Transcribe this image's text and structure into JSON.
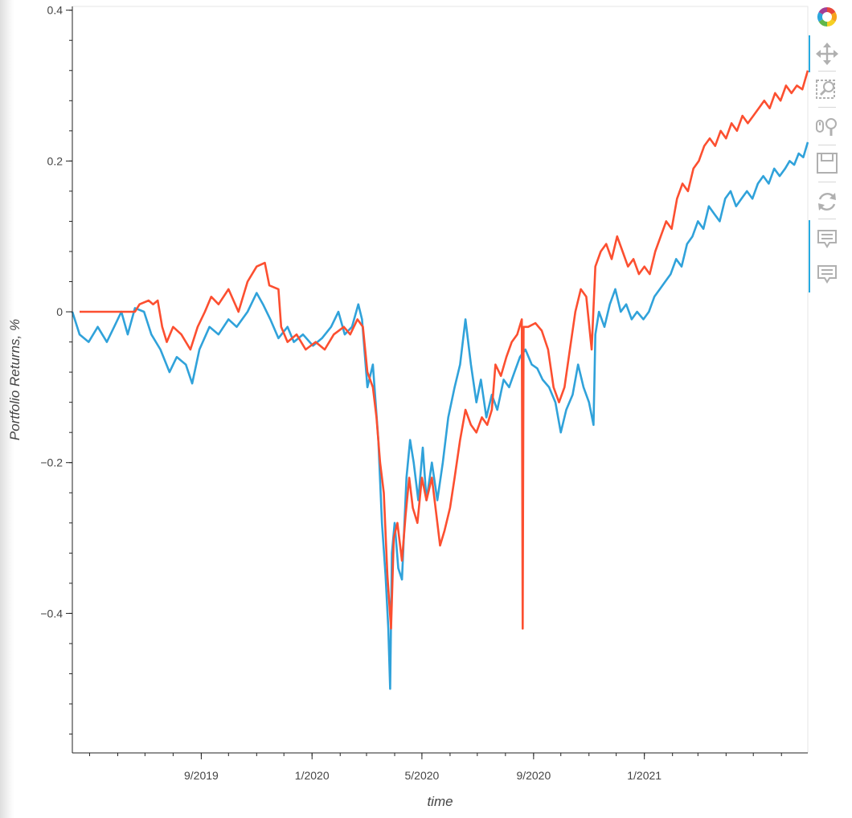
{
  "chart_data": {
    "type": "line",
    "title": "",
    "xlabel": "time",
    "ylabel": "Portfolio Returns, %",
    "xlim": [
      "2019-04-12",
      "2021-06-30"
    ],
    "ylim": [
      -0.585,
      0.405
    ],
    "x_ticks": [
      "2019-09-01",
      "2020-01-01",
      "2020-05-01",
      "2020-09-01",
      "2021-01-01"
    ],
    "x_tick_labels": [
      "9/2019",
      "1/2020",
      "5/2020",
      "9/2020",
      "1/2021"
    ],
    "y_ticks": [
      0.4,
      0.2,
      0,
      -0.2,
      -0.4
    ],
    "y_tick_labels": [
      "0.4",
      "0.2",
      "0",
      "−0.2",
      "−0.4"
    ],
    "y_minor_step": 0.04,
    "grid": false,
    "legend": "none",
    "series": [
      {
        "color": "#30a2da",
        "points": [
          [
            "2019-04-12",
            0.0
          ],
          [
            "2019-04-20",
            -0.03
          ],
          [
            "2019-04-30",
            -0.04
          ],
          [
            "2019-05-10",
            -0.02
          ],
          [
            "2019-05-20",
            -0.04
          ],
          [
            "2019-05-28",
            -0.02
          ],
          [
            "2019-06-05",
            0.0
          ],
          [
            "2019-06-12",
            -0.03
          ],
          [
            "2019-06-20",
            0.005
          ],
          [
            "2019-06-30",
            0.0
          ],
          [
            "2019-07-08",
            -0.03
          ],
          [
            "2019-07-18",
            -0.05
          ],
          [
            "2019-07-28",
            -0.08
          ],
          [
            "2019-08-05",
            -0.06
          ],
          [
            "2019-08-15",
            -0.07
          ],
          [
            "2019-08-22",
            -0.095
          ],
          [
            "2019-08-30",
            -0.05
          ],
          [
            "2019-09-10",
            -0.02
          ],
          [
            "2019-09-20",
            -0.03
          ],
          [
            "2019-10-01",
            -0.01
          ],
          [
            "2019-10-10",
            -0.02
          ],
          [
            "2019-10-22",
            0.0
          ],
          [
            "2019-11-01",
            0.025
          ],
          [
            "2019-11-08",
            0.01
          ],
          [
            "2019-11-16",
            -0.01
          ],
          [
            "2019-11-25",
            -0.035
          ],
          [
            "2019-12-05",
            -0.02
          ],
          [
            "2019-12-12",
            -0.04
          ],
          [
            "2019-12-22",
            -0.03
          ],
          [
            "2020-01-02",
            -0.045
          ],
          [
            "2020-01-12",
            -0.035
          ],
          [
            "2020-01-22",
            -0.02
          ],
          [
            "2020-01-30",
            0.0
          ],
          [
            "2020-02-06",
            -0.03
          ],
          [
            "2020-02-14",
            -0.02
          ],
          [
            "2020-02-21",
            0.01
          ],
          [
            "2020-02-25",
            -0.01
          ],
          [
            "2020-03-02",
            -0.1
          ],
          [
            "2020-03-08",
            -0.07
          ],
          [
            "2020-03-14",
            -0.17
          ],
          [
            "2020-03-18",
            -0.28
          ],
          [
            "2020-03-22",
            -0.35
          ],
          [
            "2020-03-25",
            -0.42
          ],
          [
            "2020-03-27",
            -0.5
          ],
          [
            "2020-03-29",
            -0.32
          ],
          [
            "2020-04-01",
            -0.28
          ],
          [
            "2020-04-05",
            -0.34
          ],
          [
            "2020-04-09",
            -0.355
          ],
          [
            "2020-04-14",
            -0.22
          ],
          [
            "2020-04-18",
            -0.17
          ],
          [
            "2020-04-22",
            -0.2
          ],
          [
            "2020-04-27",
            -0.25
          ],
          [
            "2020-05-02",
            -0.18
          ],
          [
            "2020-05-06",
            -0.25
          ],
          [
            "2020-05-12",
            -0.2
          ],
          [
            "2020-05-18",
            -0.25
          ],
          [
            "2020-05-24",
            -0.2
          ],
          [
            "2020-05-30",
            -0.14
          ],
          [
            "2020-06-06",
            -0.1
          ],
          [
            "2020-06-12",
            -0.07
          ],
          [
            "2020-06-18",
            -0.01
          ],
          [
            "2020-06-24",
            -0.07
          ],
          [
            "2020-06-30",
            -0.12
          ],
          [
            "2020-07-05",
            -0.09
          ],
          [
            "2020-07-11",
            -0.14
          ],
          [
            "2020-07-17",
            -0.11
          ],
          [
            "2020-07-23",
            -0.13
          ],
          [
            "2020-07-30",
            -0.09
          ],
          [
            "2020-08-05",
            -0.1
          ],
          [
            "2020-08-11",
            -0.08
          ],
          [
            "2020-08-17",
            -0.06
          ],
          [
            "2020-08-23",
            -0.05
          ],
          [
            "2020-08-30",
            -0.07
          ],
          [
            "2020-09-05",
            -0.075
          ],
          [
            "2020-09-11",
            -0.09
          ],
          [
            "2020-09-18",
            -0.1
          ],
          [
            "2020-09-25",
            -0.12
          ],
          [
            "2020-10-01",
            -0.16
          ],
          [
            "2020-10-07",
            -0.13
          ],
          [
            "2020-10-14",
            -0.11
          ],
          [
            "2020-10-20",
            -0.07
          ],
          [
            "2020-10-26",
            -0.1
          ],
          [
            "2020-11-01",
            -0.12
          ],
          [
            "2020-11-06",
            -0.15
          ],
          [
            "2020-11-08",
            -0.03
          ],
          [
            "2020-11-12",
            0.0
          ],
          [
            "2020-11-18",
            -0.02
          ],
          [
            "2020-11-24",
            0.01
          ],
          [
            "2020-11-30",
            0.03
          ],
          [
            "2020-12-06",
            0.0
          ],
          [
            "2020-12-12",
            0.01
          ],
          [
            "2020-12-18",
            -0.01
          ],
          [
            "2020-12-24",
            0.0
          ],
          [
            "2020-12-31",
            -0.01
          ],
          [
            "2021-01-06",
            0.0
          ],
          [
            "2021-01-12",
            0.02
          ],
          [
            "2021-01-18",
            0.03
          ],
          [
            "2021-01-24",
            0.04
          ],
          [
            "2021-01-30",
            0.05
          ],
          [
            "2021-02-05",
            0.07
          ],
          [
            "2021-02-11",
            0.06
          ],
          [
            "2021-02-17",
            0.09
          ],
          [
            "2021-02-23",
            0.1
          ],
          [
            "2021-03-01",
            0.12
          ],
          [
            "2021-03-07",
            0.11
          ],
          [
            "2021-03-13",
            0.14
          ],
          [
            "2021-03-19",
            0.13
          ],
          [
            "2021-03-25",
            0.12
          ],
          [
            "2021-03-31",
            0.15
          ],
          [
            "2021-04-06",
            0.16
          ],
          [
            "2021-04-12",
            0.14
          ],
          [
            "2021-04-18",
            0.15
          ],
          [
            "2021-04-24",
            0.16
          ],
          [
            "2021-04-30",
            0.15
          ],
          [
            "2021-05-06",
            0.17
          ],
          [
            "2021-05-12",
            0.18
          ],
          [
            "2021-05-18",
            0.17
          ],
          [
            "2021-05-24",
            0.19
          ],
          [
            "2021-05-30",
            0.18
          ],
          [
            "2021-06-05",
            0.19
          ],
          [
            "2021-06-10",
            0.2
          ],
          [
            "2021-06-15",
            0.195
          ],
          [
            "2021-06-20",
            0.21
          ],
          [
            "2021-06-25",
            0.205
          ],
          [
            "2021-06-30",
            0.225
          ]
        ]
      },
      {
        "color": "#fc4f30",
        "points": [
          [
            "2019-04-20",
            0.0
          ],
          [
            "2019-05-20",
            0.0
          ],
          [
            "2019-06-10",
            0.0
          ],
          [
            "2019-06-20",
            0.0
          ],
          [
            "2019-06-25",
            0.01
          ],
          [
            "2019-07-05",
            0.015
          ],
          [
            "2019-07-10",
            0.01
          ],
          [
            "2019-07-15",
            0.015
          ],
          [
            "2019-07-20",
            -0.02
          ],
          [
            "2019-07-25",
            -0.04
          ],
          [
            "2019-08-01",
            -0.02
          ],
          [
            "2019-08-10",
            -0.03
          ],
          [
            "2019-08-20",
            -0.05
          ],
          [
            "2019-08-28",
            -0.02
          ],
          [
            "2019-09-05",
            0.0
          ],
          [
            "2019-09-12",
            0.02
          ],
          [
            "2019-09-20",
            0.01
          ],
          [
            "2019-10-01",
            0.03
          ],
          [
            "2019-10-12",
            0.0
          ],
          [
            "2019-10-22",
            0.04
          ],
          [
            "2019-11-01",
            0.06
          ],
          [
            "2019-11-10",
            0.065
          ],
          [
            "2019-11-15",
            0.035
          ],
          [
            "2019-11-25",
            0.03
          ],
          [
            "2019-11-28",
            -0.02
          ],
          [
            "2019-12-05",
            -0.04
          ],
          [
            "2019-12-15",
            -0.03
          ],
          [
            "2019-12-25",
            -0.05
          ],
          [
            "2020-01-05",
            -0.04
          ],
          [
            "2020-01-15",
            -0.05
          ],
          [
            "2020-01-25",
            -0.03
          ],
          [
            "2020-02-05",
            -0.02
          ],
          [
            "2020-02-12",
            -0.03
          ],
          [
            "2020-02-20",
            -0.01
          ],
          [
            "2020-02-26",
            -0.02
          ],
          [
            "2020-03-02",
            -0.08
          ],
          [
            "2020-03-08",
            -0.1
          ],
          [
            "2020-03-12",
            -0.14
          ],
          [
            "2020-03-16",
            -0.2
          ],
          [
            "2020-03-20",
            -0.24
          ],
          [
            "2020-03-24",
            -0.35
          ],
          [
            "2020-03-28",
            -0.42
          ],
          [
            "2020-03-31",
            -0.3
          ],
          [
            "2020-04-04",
            -0.28
          ],
          [
            "2020-04-09",
            -0.33
          ],
          [
            "2020-04-13",
            -0.27
          ],
          [
            "2020-04-17",
            -0.22
          ],
          [
            "2020-04-21",
            -0.26
          ],
          [
            "2020-04-26",
            -0.28
          ],
          [
            "2020-05-01",
            -0.22
          ],
          [
            "2020-05-06",
            -0.25
          ],
          [
            "2020-05-12",
            -0.22
          ],
          [
            "2020-05-17",
            -0.27
          ],
          [
            "2020-05-21",
            -0.31
          ],
          [
            "2020-05-26",
            -0.29
          ],
          [
            "2020-06-01",
            -0.26
          ],
          [
            "2020-06-06",
            -0.22
          ],
          [
            "2020-06-12",
            -0.17
          ],
          [
            "2020-06-18",
            -0.13
          ],
          [
            "2020-06-24",
            -0.15
          ],
          [
            "2020-06-30",
            -0.16
          ],
          [
            "2020-07-06",
            -0.14
          ],
          [
            "2020-07-12",
            -0.15
          ],
          [
            "2020-07-17",
            -0.13
          ],
          [
            "2020-07-21",
            -0.07
          ],
          [
            "2020-07-27",
            -0.085
          ],
          [
            "2020-08-02",
            -0.06
          ],
          [
            "2020-08-08",
            -0.04
          ],
          [
            "2020-08-14",
            -0.03
          ],
          [
            "2020-08-19",
            -0.01
          ],
          [
            "2020-08-20",
            -0.42
          ],
          [
            "2020-08-21",
            -0.02
          ],
          [
            "2020-08-26",
            -0.02
          ],
          [
            "2020-09-03",
            -0.015
          ],
          [
            "2020-09-10",
            -0.025
          ],
          [
            "2020-09-17",
            -0.05
          ],
          [
            "2020-09-23",
            -0.1
          ],
          [
            "2020-09-29",
            -0.12
          ],
          [
            "2020-10-05",
            -0.1
          ],
          [
            "2020-10-11",
            -0.05
          ],
          [
            "2020-10-17",
            0.0
          ],
          [
            "2020-10-23",
            0.03
          ],
          [
            "2020-10-29",
            0.02
          ],
          [
            "2020-11-04",
            -0.05
          ],
          [
            "2020-11-08",
            0.06
          ],
          [
            "2020-11-14",
            0.08
          ],
          [
            "2020-11-20",
            0.09
          ],
          [
            "2020-11-26",
            0.07
          ],
          [
            "2020-12-02",
            0.1
          ],
          [
            "2020-12-08",
            0.08
          ],
          [
            "2020-12-14",
            0.06
          ],
          [
            "2020-12-20",
            0.07
          ],
          [
            "2020-12-26",
            0.05
          ],
          [
            "2021-01-01",
            0.06
          ],
          [
            "2021-01-07",
            0.05
          ],
          [
            "2021-01-13",
            0.08
          ],
          [
            "2021-01-19",
            0.1
          ],
          [
            "2021-01-25",
            0.12
          ],
          [
            "2021-01-31",
            0.11
          ],
          [
            "2021-02-06",
            0.15
          ],
          [
            "2021-02-12",
            0.17
          ],
          [
            "2021-02-18",
            0.16
          ],
          [
            "2021-02-24",
            0.19
          ],
          [
            "2021-03-02",
            0.2
          ],
          [
            "2021-03-08",
            0.22
          ],
          [
            "2021-03-14",
            0.23
          ],
          [
            "2021-03-20",
            0.22
          ],
          [
            "2021-03-26",
            0.24
          ],
          [
            "2021-04-01",
            0.23
          ],
          [
            "2021-04-07",
            0.25
          ],
          [
            "2021-04-13",
            0.24
          ],
          [
            "2021-04-19",
            0.26
          ],
          [
            "2021-04-25",
            0.25
          ],
          [
            "2021-05-01",
            0.26
          ],
          [
            "2021-05-07",
            0.27
          ],
          [
            "2021-05-13",
            0.28
          ],
          [
            "2021-05-19",
            0.27
          ],
          [
            "2021-05-25",
            0.29
          ],
          [
            "2021-05-31",
            0.28
          ],
          [
            "2021-06-06",
            0.3
          ],
          [
            "2021-06-12",
            0.29
          ],
          [
            "2021-06-18",
            0.3
          ],
          [
            "2021-06-24",
            0.295
          ],
          [
            "2021-06-30",
            0.32
          ]
        ]
      }
    ]
  },
  "toolbar": {
    "tools": [
      {
        "name": "bokeh-logo",
        "icon": "bokeh-logo-icon",
        "active": false
      },
      {
        "name": "pan",
        "icon": "pan-icon",
        "active": true
      },
      {
        "name": "box-zoom",
        "icon": "box-zoom-icon",
        "active": false
      },
      {
        "name": "wheel-zoom",
        "icon": "wheel-zoom-icon",
        "active": false
      },
      {
        "name": "save",
        "icon": "save-icon",
        "active": false
      },
      {
        "name": "reset",
        "icon": "reset-icon",
        "active": false
      },
      {
        "name": "hover-1",
        "icon": "hover-icon",
        "active": true
      },
      {
        "name": "hover-2",
        "icon": "hover-icon",
        "active": true
      }
    ],
    "icon_color": "#b0b0b0",
    "active_color": "#26aae1"
  }
}
